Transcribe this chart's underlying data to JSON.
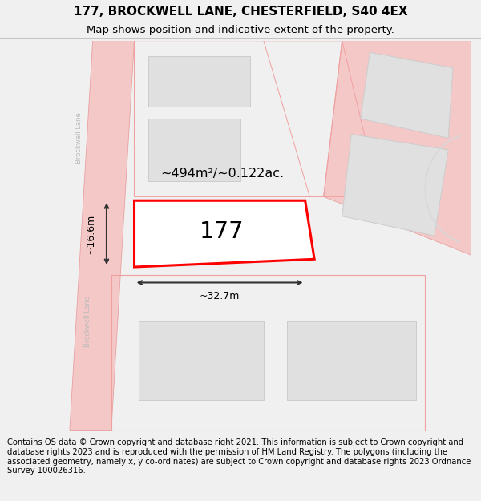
{
  "title": "177, BROCKWELL LANE, CHESTERFIELD, S40 4EX",
  "subtitle": "Map shows position and indicative extent of the property.",
  "footer": "Contains OS data © Crown copyright and database right 2021. This information is subject to Crown copyright and database rights 2023 and is reproduced with the permission of HM Land Registry. The polygons (including the associated geometry, namely x, y co-ordinates) are subject to Crown copyright and database rights 2023 Ordnance Survey 100026316.",
  "bg_color": "#f0f0f0",
  "map_bg": "#f5f5f5",
  "road_fill": "#f5c8c8",
  "road_edge": "#e8a0a0",
  "building_fill": "#e0e0e0",
  "building_edge": "#cccccc",
  "parcel_edge": "#f0a0a0",
  "highlight_fill": "#ffffff",
  "highlight_edge": "#ff0000",
  "highlight_lw": 2.2,
  "label_177": "177",
  "area_label": "~494m²/~0.122ac.",
  "width_label": "~32.7m",
  "height_label": "~16.6m",
  "road_label": "Brockwell Lane",
  "title_fontsize": 11,
  "subtitle_fontsize": 9.5,
  "footer_fontsize": 7.2,
  "road_label_color": "#bbbbbb",
  "dim_line_color": "#333333",
  "map_border_color": "#cccccc"
}
